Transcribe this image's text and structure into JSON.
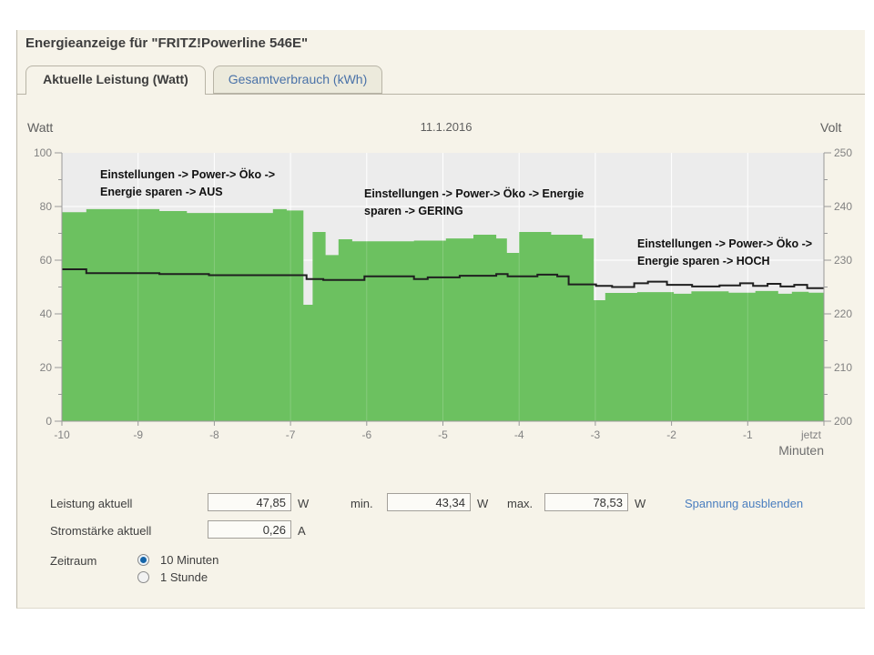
{
  "header": {
    "title": "Energieanzeige für \"FRITZ!Powerline 546E\""
  },
  "tabs": [
    {
      "label": "Aktuelle Leistung (Watt)",
      "active": true
    },
    {
      "label": "Gesamtverbrauch (kWh)",
      "active": false
    }
  ],
  "chart": {
    "left_axis_caption": "Watt",
    "right_axis_caption": "Volt",
    "date": "11.1.2016",
    "x_unit_label": "Minuten",
    "annotations": [
      {
        "l1": "Einstellungen -> Power-> Öko ->",
        "l2": "Energie sparen -> AUS"
      },
      {
        "l1": "Einstellungen -> Power-> Öko -> Energie",
        "l2": "sparen -> GERING"
      },
      {
        "l1": "Einstellungen -> Power-> Öko ->",
        "l2": "Energie sparen -> HOCH"
      }
    ]
  },
  "chart_data": {
    "type": "area",
    "title": "11.1.2016",
    "xlabel": "Minuten",
    "x_min": -10,
    "x_max": 0,
    "grid": true,
    "plot_bg": "#ececec",
    "grid_color": "#ffffff",
    "axis_color": "#999999",
    "tick_text_color": "#828282",
    "y_left": {
      "label": "Watt",
      "min": 0,
      "max": 100,
      "major_ticks": [
        0,
        20,
        40,
        60,
        80,
        100
      ],
      "minor_ticks": [
        10,
        30,
        50,
        70,
        90
      ]
    },
    "y_right": {
      "label": "Volt",
      "min": 200,
      "max": 250,
      "major_ticks": [
        200,
        210,
        220,
        230,
        240,
        250
      ],
      "minor_ticks": [
        205,
        215,
        225,
        235,
        245
      ]
    },
    "x_ticks": [
      {
        "t": -10,
        "label": "-10"
      },
      {
        "t": -9,
        "label": "-9"
      },
      {
        "t": -8,
        "label": "-8"
      },
      {
        "t": -7,
        "label": "-7"
      },
      {
        "t": -6,
        "label": "-6"
      },
      {
        "t": -5,
        "label": "-5"
      },
      {
        "t": -4,
        "label": "-4"
      },
      {
        "t": -3,
        "label": "-3"
      },
      {
        "t": -2,
        "label": "-2"
      },
      {
        "t": -1,
        "label": "-1"
      },
      {
        "t": 0,
        "label": "jetzt"
      }
    ],
    "series": [
      {
        "name": "Leistung (Watt)",
        "type": "area",
        "axis": "left",
        "step": true,
        "color": "#6cc160",
        "points": [
          [
            -10.0,
            77.9
          ],
          [
            -9.68,
            79.0
          ],
          [
            -8.72,
            78.3
          ],
          [
            -8.36,
            77.6
          ],
          [
            -7.23,
            79.0
          ],
          [
            -7.05,
            78.5
          ],
          [
            -6.83,
            43.4
          ],
          [
            -6.71,
            70.5
          ],
          [
            -6.54,
            61.9
          ],
          [
            -6.37,
            67.8
          ],
          [
            -6.19,
            67.0
          ],
          [
            -5.38,
            67.3
          ],
          [
            -4.96,
            68.1
          ],
          [
            -4.6,
            69.5
          ],
          [
            -4.3,
            68.1
          ],
          [
            -4.16,
            62.7
          ],
          [
            -4.0,
            70.5
          ],
          [
            -3.58,
            69.5
          ],
          [
            -3.17,
            68.1
          ],
          [
            -3.02,
            45.1
          ],
          [
            -2.87,
            47.8
          ],
          [
            -2.45,
            48.1
          ],
          [
            -1.97,
            47.5
          ],
          [
            -1.74,
            48.4
          ],
          [
            -1.25,
            47.9
          ],
          [
            -0.9,
            48.5
          ],
          [
            -0.6,
            47.5
          ],
          [
            -0.42,
            48.2
          ],
          [
            -0.2,
            47.85
          ]
        ]
      },
      {
        "name": "Spannung (Volt)",
        "type": "line",
        "axis": "right",
        "step": true,
        "color": "#1f1f1f",
        "points": [
          [
            -10.0,
            228.3
          ],
          [
            -9.68,
            227.6
          ],
          [
            -8.72,
            227.4
          ],
          [
            -8.07,
            227.2
          ],
          [
            -6.79,
            226.5
          ],
          [
            -6.57,
            226.3
          ],
          [
            -6.03,
            227.0
          ],
          [
            -5.38,
            226.5
          ],
          [
            -5.2,
            226.8
          ],
          [
            -4.78,
            227.1
          ],
          [
            -4.3,
            227.4
          ],
          [
            -4.15,
            227.0
          ],
          [
            -3.76,
            227.3
          ],
          [
            -3.5,
            227.0
          ],
          [
            -3.35,
            225.5
          ],
          [
            -2.99,
            225.2
          ],
          [
            -2.78,
            225.0
          ],
          [
            -2.49,
            225.7
          ],
          [
            -2.31,
            226.0
          ],
          [
            -2.06,
            225.4
          ],
          [
            -1.73,
            225.1
          ],
          [
            -1.37,
            225.3
          ],
          [
            -1.1,
            225.7
          ],
          [
            -0.93,
            225.2
          ],
          [
            -0.74,
            225.6
          ],
          [
            -0.57,
            225.1
          ],
          [
            -0.39,
            225.4
          ],
          [
            -0.22,
            224.8
          ]
        ]
      }
    ]
  },
  "readouts": {
    "leistung_label": "Leistung aktuell",
    "leistung_value": "47,85",
    "leistung_unit": "W",
    "min_label": "min.",
    "min_value": "43,34",
    "min_unit": "W",
    "max_label": "max.",
    "max_value": "78,53",
    "max_unit": "W",
    "strom_label": "Stromstärke aktuell",
    "strom_value": "0,26",
    "strom_unit": "A",
    "spannung_link": "Spannung ausblenden"
  },
  "zeitraum": {
    "label": "Zeitraum",
    "options": [
      {
        "label": "10 Minuten",
        "selected": true
      },
      {
        "label": "1 Stunde",
        "selected": false
      }
    ]
  }
}
